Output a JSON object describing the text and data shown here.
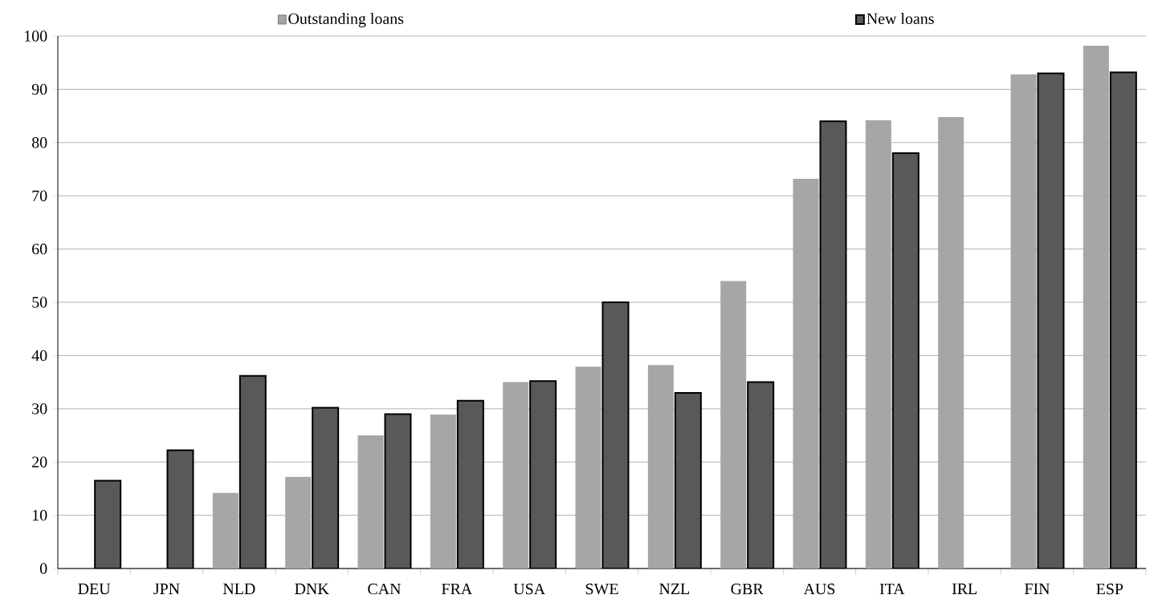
{
  "chart_data": {
    "type": "bar",
    "categories": [
      "DEU",
      "JPN",
      "NLD",
      "DNK",
      "CAN",
      "FRA",
      "USA",
      "SWE",
      "NZL",
      "GBR",
      "AUS",
      "ITA",
      "IRL",
      "FIN",
      "ESP"
    ],
    "series": [
      {
        "name": "Outstanding loans",
        "color": "#a6a6a6",
        "values": [
          null,
          null,
          14.2,
          17.2,
          25,
          28.9,
          35,
          37.9,
          38.2,
          54,
          73.2,
          84.2,
          84.8,
          92.8,
          98.2
        ]
      },
      {
        "name": "New loans",
        "color": "#595959",
        "values": [
          16.5,
          22.2,
          36.2,
          30.2,
          29,
          31.5,
          35.2,
          50,
          33,
          35,
          84,
          78,
          null,
          93,
          93.2
        ]
      }
    ],
    "ylim": [
      0,
      100
    ],
    "yticks": [
      0,
      10,
      20,
      30,
      40,
      50,
      60,
      70,
      80,
      90,
      100
    ],
    "grid": "y",
    "legend": "top"
  }
}
